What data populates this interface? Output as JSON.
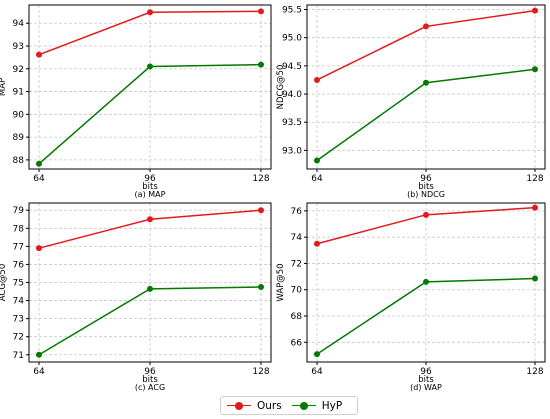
{
  "colors": {
    "Ours": "#e31a1c",
    "HyP": "#007a00",
    "grid": "#c8c8c8"
  },
  "chart_data": [
    {
      "type": "line",
      "x": [
        64,
        96,
        128
      ],
      "xlabel": "bits",
      "ylabel": "MAP",
      "caption": "(a) MAP",
      "yticks": [
        88,
        89,
        90,
        91,
        92,
        93,
        94
      ],
      "ylim": [
        87.6,
        94.8
      ],
      "grid": true,
      "series": [
        {
          "name": "Ours",
          "values": [
            92.62,
            94.48,
            94.52
          ]
        },
        {
          "name": "HyP",
          "values": [
            87.83,
            92.1,
            92.18
          ]
        }
      ]
    },
    {
      "type": "line",
      "x": [
        64,
        96,
        128
      ],
      "xlabel": "bits",
      "ylabel": "NDCG@50",
      "caption": "(b) NDCG",
      "yticks": [
        "93.0",
        "93.5",
        "94.0",
        "94.5",
        "95.0",
        "95.5"
      ],
      "ylim": [
        92.67,
        95.58
      ],
      "grid": true,
      "series": [
        {
          "name": "Ours",
          "values": [
            94.25,
            95.2,
            95.48
          ]
        },
        {
          "name": "HyP",
          "values": [
            92.82,
            94.2,
            94.44
          ]
        }
      ]
    },
    {
      "type": "line",
      "x": [
        64,
        96,
        128
      ],
      "xlabel": "bits",
      "ylabel": "ACG@50",
      "caption": "(c) ACG",
      "yticks": [
        71,
        72,
        73,
        74,
        75,
        76,
        77,
        78,
        79
      ],
      "ylim": [
        70.6,
        79.4
      ],
      "grid": true,
      "series": [
        {
          "name": "Ours",
          "values": [
            76.9,
            78.5,
            79.0
          ]
        },
        {
          "name": "HyP",
          "values": [
            71.0,
            74.65,
            74.75
          ]
        }
      ]
    },
    {
      "type": "line",
      "x": [
        64,
        96,
        128
      ],
      "xlabel": "bits",
      "ylabel": "WAP@50",
      "caption": "(d) WAP",
      "yticks": [
        66,
        68,
        70,
        72,
        74,
        76
      ],
      "ylim": [
        64.5,
        76.6
      ],
      "grid": true,
      "series": [
        {
          "name": "Ours",
          "values": [
            73.5,
            75.7,
            76.25
          ]
        },
        {
          "name": "HyP",
          "values": [
            65.1,
            70.6,
            70.85
          ]
        }
      ]
    }
  ],
  "legend": {
    "placement": "bottom-center",
    "entries": [
      "Ours",
      "HyP"
    ]
  }
}
